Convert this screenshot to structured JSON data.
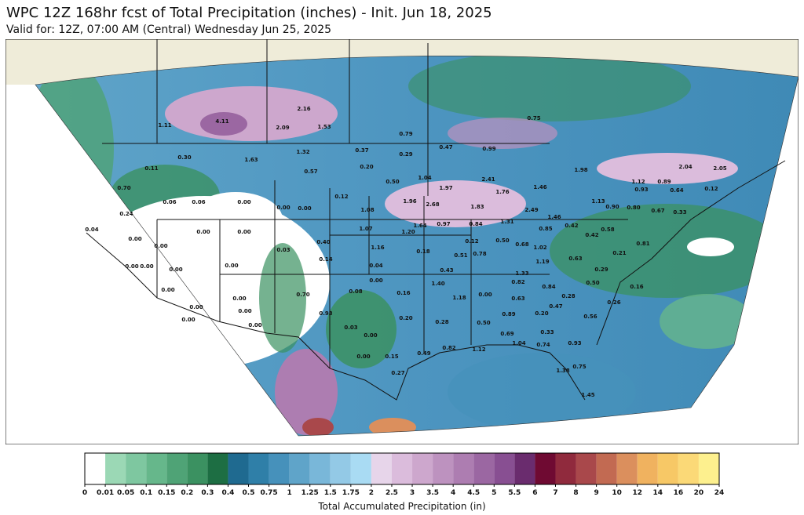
{
  "header": {
    "title": "WPC 12Z 168hr fcst of Total Precipitation (inches) - Init. Jun 18, 2025",
    "subtitle": "Valid for: 12Z, 07:00 AM (Central) Wednesday Jun 25, 2025"
  },
  "map": {
    "labels": [
      "4.11",
      "2.16",
      "2.09",
      "1.53",
      "1.11",
      "0.79",
      "0.75",
      "0.47",
      "0.99",
      "1.98",
      "2.04",
      "2.05",
      "0.11",
      "0.30",
      "1.63",
      "1.32",
      "0.57",
      "0.37",
      "0.29",
      "0.20",
      "0.50",
      "1.04",
      "1.97",
      "2.41",
      "1.76",
      "1.46",
      "0.70",
      "0.06",
      "0.06",
      "0.00",
      "0.00",
      "0.00",
      "0.12",
      "1.08",
      "1.96",
      "2.68",
      "1.83",
      "2.49",
      "1.13",
      "1.12",
      "0.93",
      "0.89",
      "0.64",
      "0.12",
      "0.24",
      "0.04",
      "0.00",
      "0.00",
      "1.07",
      "1.20",
      "1.64",
      "0.97",
      "0.84",
      "1.31",
      "1.46",
      "0.42",
      "0.90",
      "0.80",
      "0.67",
      "0.33",
      "0.85",
      "0.58",
      "0.42",
      "0.00",
      "0.00",
      "0.03",
      "0.40",
      "0.14",
      "1.16",
      "0.18",
      "0.50",
      "0.12",
      "0.51",
      "0.78",
      "0.68",
      "1.02",
      "0.63",
      "0.21",
      "0.81",
      "0.00",
      "0.00",
      "0.00",
      "0.00",
      "0.04",
      "0.43",
      "1.19",
      "1.33",
      "0.29",
      "0.00",
      "1.40",
      "0.82",
      "0.84",
      "0.50",
      "0.16",
      "0.00",
      "0.70",
      "0.08",
      "0.16",
      "1.18",
      "0.00",
      "0.63",
      "0.28",
      "0.47",
      "0.26",
      "0.00",
      "0.00",
      "0.00",
      "0.00",
      "0.93",
      "0.89",
      "0.20",
      "0.56",
      "0.00",
      "0.20",
      "0.28",
      "0.50",
      "0.03",
      "0.00",
      "0.69",
      "0.33",
      "0.82",
      "1.12",
      "1.04",
      "0.74",
      "0.93",
      "0.49",
      "0.00",
      "0.15",
      "0.75",
      "1.38",
      "1.45",
      "0.27"
    ]
  },
  "colorbar": {
    "ticks": [
      0,
      0.01,
      0.05,
      0.1,
      0.15,
      0.2,
      0.3,
      0.4,
      0.5,
      0.75,
      1,
      1.25,
      1.5,
      1.75,
      2,
      2.5,
      3,
      3.5,
      4,
      4.5,
      5,
      5.5,
      6,
      7,
      8,
      9,
      10,
      12,
      14,
      16,
      20,
      24
    ],
    "colors": [
      "#ffffff",
      "#9bd8b5",
      "#7ec7a0",
      "#66b78b",
      "#4fa376",
      "#3b9161",
      "#1d6e43",
      "#1f6a90",
      "#2f7fa8",
      "#4691bb",
      "#5fa4c9",
      "#79b7d9",
      "#93c9e6",
      "#a9dbf3",
      "#e7d5ea",
      "#dbbcdc",
      "#cda7cd",
      "#bd92bf",
      "#ad7db1",
      "#9b67a2",
      "#884f92",
      "#6a2c6e",
      "#6f0a32",
      "#902a3d",
      "#a9484b",
      "#c26a52",
      "#db8f5d",
      "#f0b25f",
      "#f7c866",
      "#fbd977",
      "#fdf08e"
    ],
    "label": "Total Accumulated Precipitation (in)"
  }
}
